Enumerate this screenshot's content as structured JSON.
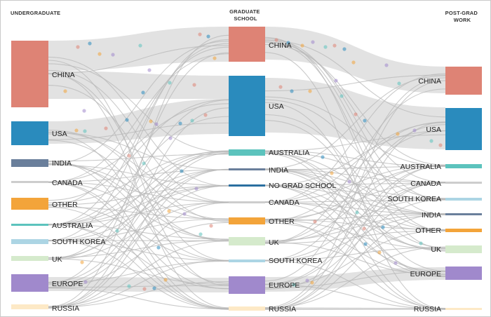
{
  "columns": [
    {
      "title_lines": [
        "UNDERGRADUATE"
      ],
      "align": "start"
    },
    {
      "title_lines": [
        "GRADUATE",
        "SCHOOL"
      ],
      "align": "middle"
    },
    {
      "title_lines": [
        "POST-GRAD",
        "WORK"
      ],
      "align": "middle"
    }
  ],
  "colors": {
    "china": "#de8375",
    "usa": "#2a8bbd",
    "india": "#6a7f9b",
    "canada": "#cdcdcd",
    "other": "#f3a43a",
    "australia": "#5cc3bd",
    "south_korea": "#acd5e4",
    "uk": "#d5eacc",
    "europe": "#a089cc",
    "russia": "#fde9c6",
    "no_grad": "#2a6fa0",
    "flow": "#d8d8d8",
    "flow_line": "#b8b8b8"
  },
  "nodes": {
    "undergraduate": [
      {
        "id": "ug-china",
        "label": "CHINA",
        "color": "china"
      },
      {
        "id": "ug-usa",
        "label": "USA",
        "color": "usa"
      },
      {
        "id": "ug-india",
        "label": "INDIA",
        "color": "india"
      },
      {
        "id": "ug-canada",
        "label": "CANADA",
        "color": "canada"
      },
      {
        "id": "ug-other",
        "label": "OTHER",
        "color": "other"
      },
      {
        "id": "ug-australia",
        "label": "AUSTRALIA",
        "color": "australia"
      },
      {
        "id": "ug-south-korea",
        "label": "SOUTH KOREA",
        "color": "south_korea"
      },
      {
        "id": "ug-uk",
        "label": "UK",
        "color": "uk"
      },
      {
        "id": "ug-europe",
        "label": "EUROPE",
        "color": "europe"
      },
      {
        "id": "ug-russia",
        "label": "RUSSIA",
        "color": "russia"
      }
    ],
    "graduate": [
      {
        "id": "gs-china",
        "label": "CHINA",
        "color": "china"
      },
      {
        "id": "gs-usa",
        "label": "USA",
        "color": "usa"
      },
      {
        "id": "gs-australia",
        "label": "AUSTRALIA",
        "color": "australia"
      },
      {
        "id": "gs-india",
        "label": "INDIA",
        "color": "india"
      },
      {
        "id": "gs-no-grad",
        "label": "NO GRAD SCHOOL",
        "color": "no_grad"
      },
      {
        "id": "gs-canada",
        "label": "CANADA",
        "color": "canada"
      },
      {
        "id": "gs-other",
        "label": "OTHER",
        "color": "other"
      },
      {
        "id": "gs-uk",
        "label": "UK",
        "color": "uk"
      },
      {
        "id": "gs-south-korea",
        "label": "SOUTH KOREA",
        "color": "south_korea"
      },
      {
        "id": "gs-europe",
        "label": "EUROPE",
        "color": "europe"
      },
      {
        "id": "gs-russia",
        "label": "RUSSIA",
        "color": "russia"
      }
    ],
    "postgrad": [
      {
        "id": "pg-china",
        "label": "CHINA",
        "color": "china"
      },
      {
        "id": "pg-usa",
        "label": "USA",
        "color": "usa"
      },
      {
        "id": "pg-australia",
        "label": "AUSTRALIA",
        "color": "australia"
      },
      {
        "id": "pg-canada",
        "label": "CANADA",
        "color": "canada"
      },
      {
        "id": "pg-south-korea",
        "label": "SOUTH KOREA",
        "color": "south_korea"
      },
      {
        "id": "pg-india",
        "label": "INDIA",
        "color": "india"
      },
      {
        "id": "pg-other",
        "label": "OTHER",
        "color": "other"
      },
      {
        "id": "pg-uk",
        "label": "UK",
        "color": "uk"
      },
      {
        "id": "pg-europe",
        "label": "EUROPE",
        "color": "europe"
      },
      {
        "id": "pg-russia",
        "label": "RUSSIA",
        "color": "russia"
      }
    ]
  }
}
